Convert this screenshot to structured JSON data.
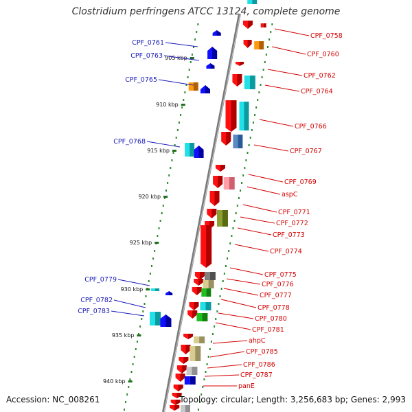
{
  "title": "Clostridium perfringens ATCC 13124, complete genome",
  "accession": "Accession: NC_008261",
  "topology": "Topology: circular; Length: 3,256,683 bp; Genes: 2,993",
  "colors": {
    "reverse_label": "#1a1ab8",
    "forward_label": "#d40000",
    "backbone": "#888888",
    "dots": "#2a8a2a",
    "kbp_tick": "#207020"
  },
  "kbp_ticks": [
    {
      "label": "905 kbp"
    },
    {
      "label": "910 kbp"
    },
    {
      "label": "915 kbp"
    },
    {
      "label": "920 kbp"
    },
    {
      "label": "925 kbp"
    },
    {
      "label": "930 kbp"
    },
    {
      "label": "935 kbp"
    },
    {
      "label": "940 kbp"
    }
  ],
  "left_labels": [
    {
      "name": "CPF_0761"
    },
    {
      "name": "CPF_0763"
    },
    {
      "name": "CPF_0765"
    },
    {
      "name": "CPF_0768"
    },
    {
      "name": "CPF_0779"
    },
    {
      "name": "CPF_0782"
    },
    {
      "name": "CPF_0783"
    }
  ],
  "right_labels": [
    {
      "name": "CPF_0758"
    },
    {
      "name": "CPF_0760"
    },
    {
      "name": "CPF_0762"
    },
    {
      "name": "CPF_0764"
    },
    {
      "name": "CPF_0766"
    },
    {
      "name": "CPF_0767"
    },
    {
      "name": "CPF_0769"
    },
    {
      "name": "aspC"
    },
    {
      "name": "CPF_0771"
    },
    {
      "name": "CPF_0772"
    },
    {
      "name": "CPF_0773"
    },
    {
      "name": "CPF_0774"
    },
    {
      "name": "CPF_0775"
    },
    {
      "name": "CPF_0776"
    },
    {
      "name": "CPF_0777"
    },
    {
      "name": "CPF_0778"
    },
    {
      "name": "CPF_0780"
    },
    {
      "name": "CPF_0781"
    },
    {
      "name": "ahpC"
    },
    {
      "name": "CPF_0785"
    },
    {
      "name": "CPF_0786"
    },
    {
      "name": "CPF_0787"
    },
    {
      "name": "panE"
    }
  ]
}
